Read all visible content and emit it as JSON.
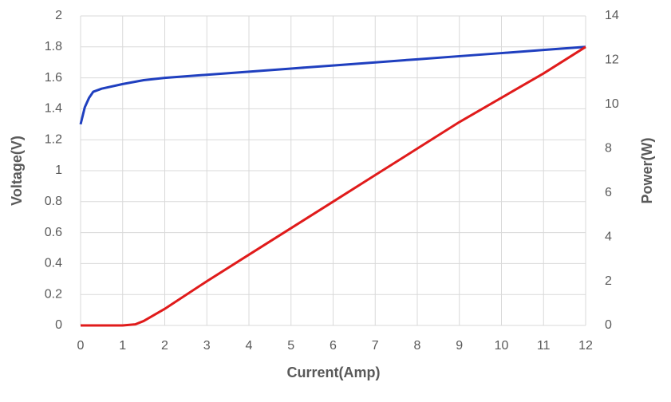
{
  "chart_data": {
    "type": "line",
    "xlabel": "Current(Amp)",
    "ylabel": "Voltage(V)",
    "y2label": "Power(W)",
    "xlim": [
      0,
      12
    ],
    "xticks": [
      0,
      1,
      2,
      3,
      4,
      5,
      6,
      7,
      8,
      9,
      10,
      11,
      12
    ],
    "ylim": [
      0,
      2
    ],
    "yticks": [
      0,
      0.2,
      0.4,
      0.6,
      0.8,
      1,
      1.2,
      1.4,
      1.6,
      1.8,
      2
    ],
    "y2lim": [
      0,
      14
    ],
    "y2ticks": [
      0,
      2,
      4,
      6,
      8,
      10,
      12,
      14
    ],
    "grid": true,
    "series": [
      {
        "color": "#1f3fbf",
        "axis": "y",
        "x": [
          0,
          0.1,
          0.2,
          0.3,
          0.5,
          1,
          1.5,
          2,
          3,
          4,
          5,
          6,
          7,
          8,
          9,
          10,
          11,
          12
        ],
        "values": [
          1.3,
          1.41,
          1.47,
          1.51,
          1.53,
          1.56,
          1.585,
          1.6,
          1.62,
          1.64,
          1.66,
          1.68,
          1.7,
          1.72,
          1.74,
          1.76,
          1.78,
          1.8
        ]
      },
      {
        "color": "#e01b1b",
        "axis": "y2",
        "x": [
          0,
          1,
          1.3,
          1.5,
          2,
          3,
          4,
          5,
          6,
          7,
          8,
          9,
          10,
          11,
          12
        ],
        "values": [
          0,
          0,
          0.05,
          0.2,
          0.75,
          2.0,
          3.2,
          4.4,
          5.6,
          6.8,
          8.0,
          9.2,
          10.3,
          11.4,
          12.6
        ]
      }
    ]
  }
}
